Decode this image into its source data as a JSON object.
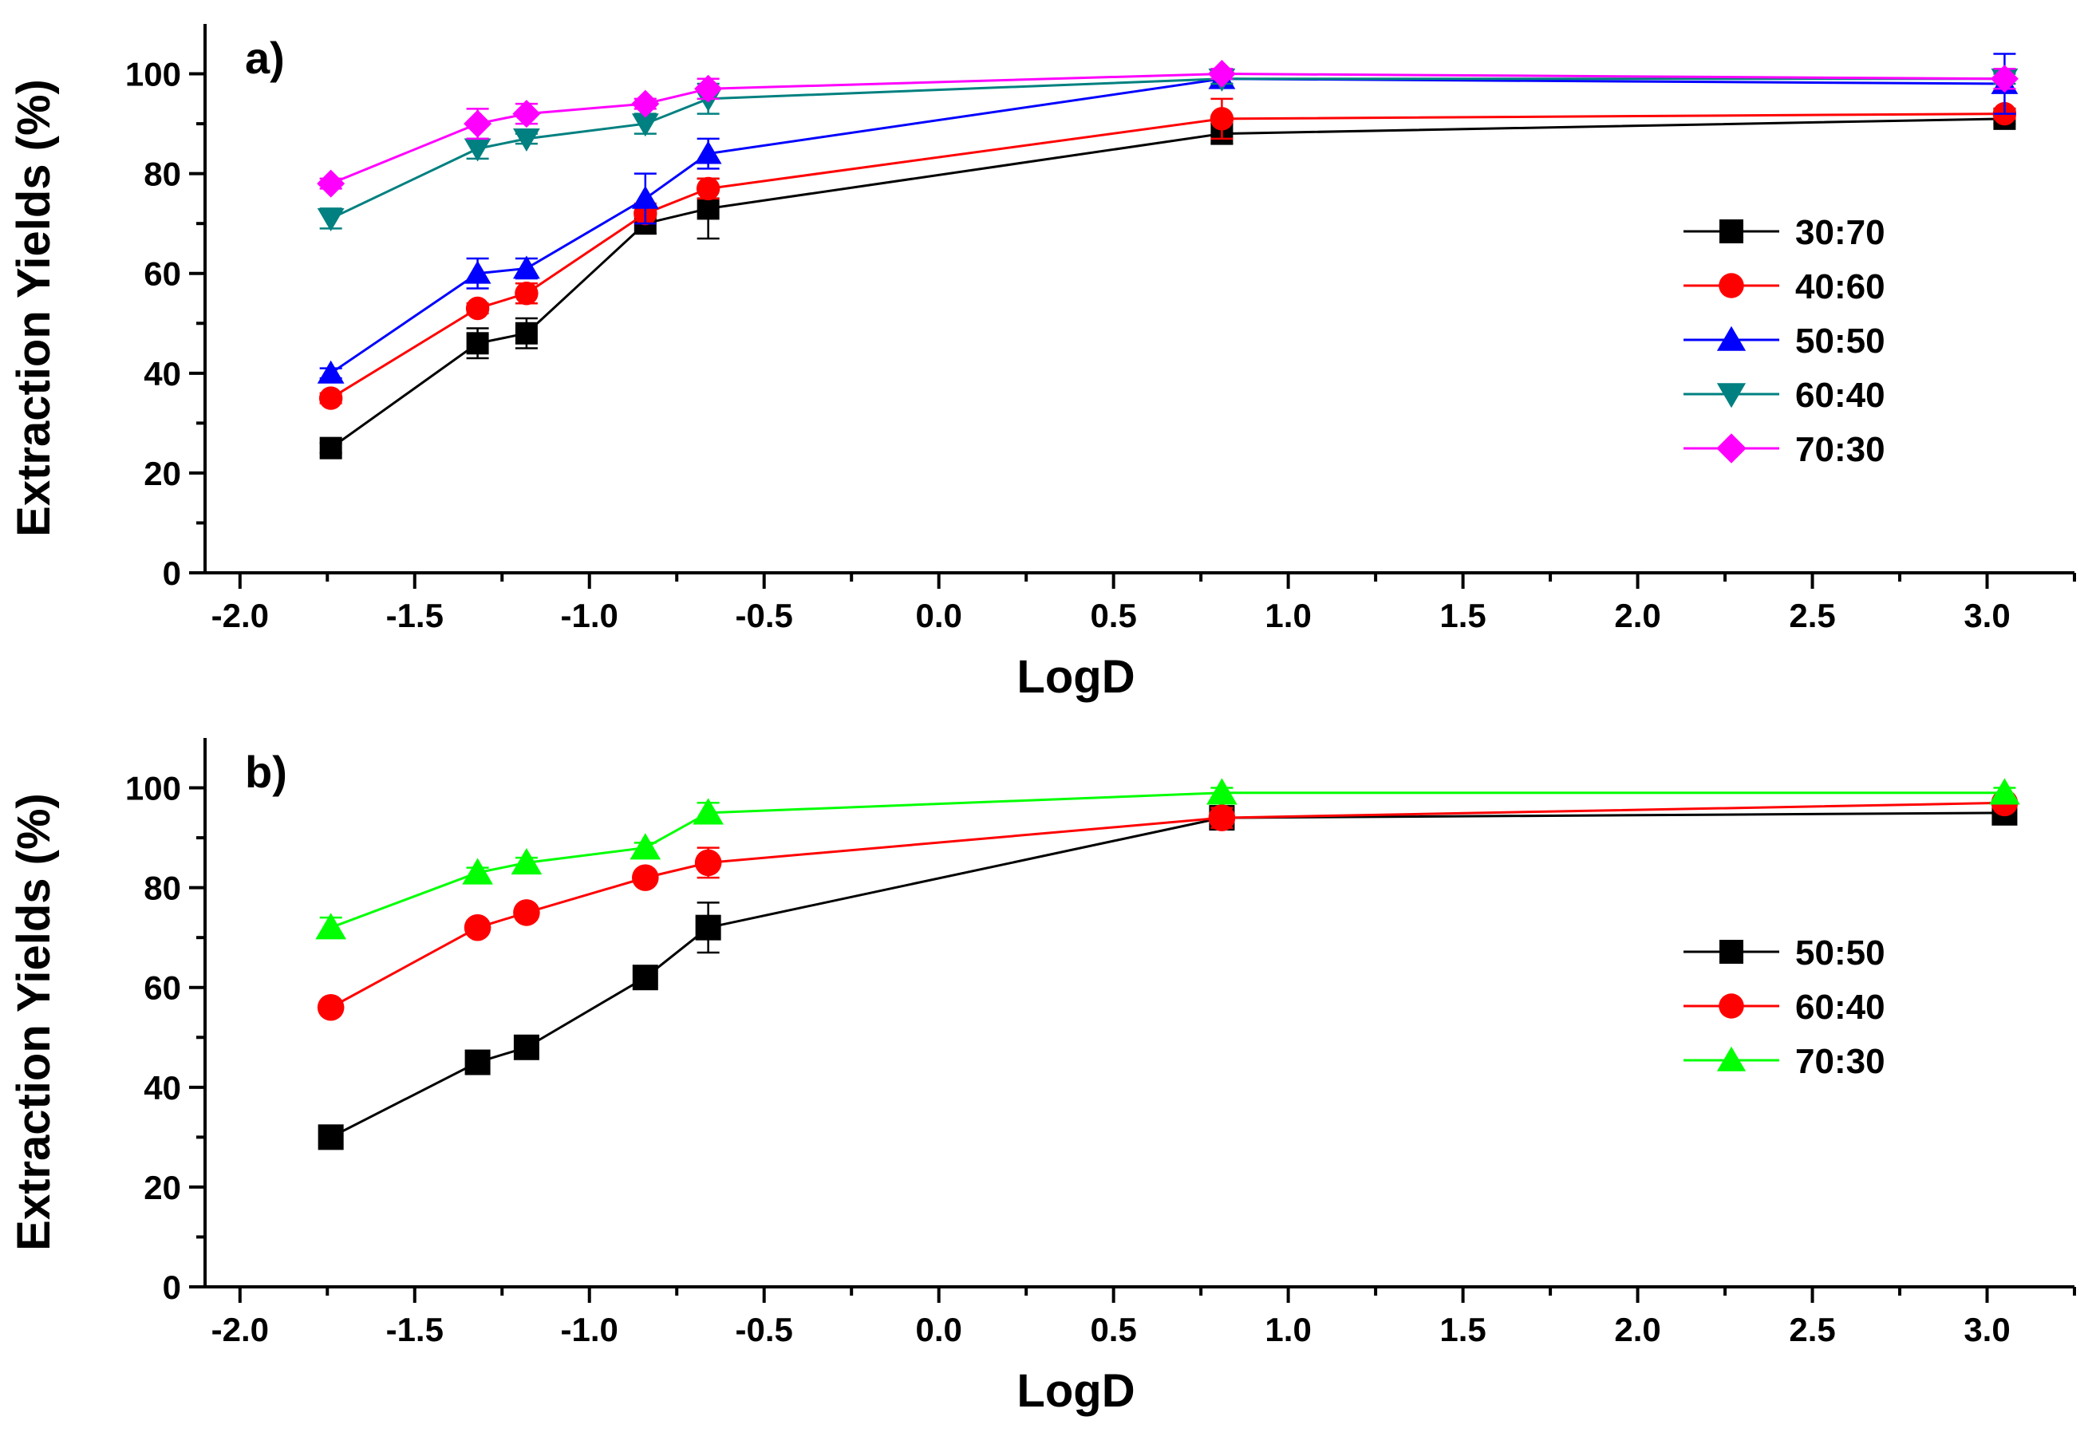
{
  "chart_data": [
    {
      "type": "line",
      "panel_label": "a)",
      "xlabel": "LogD",
      "ylabel": "Extraction Yields (%)",
      "xlim": [
        -2.1,
        3.25
      ],
      "ylim": [
        0,
        110
      ],
      "x_ticks": [
        "-2.0",
        "-1.5",
        "-1.0",
        "-0.5",
        "0.0",
        "0.5",
        "1.0",
        "1.5",
        "2.0",
        "2.5",
        "3.0"
      ],
      "y_ticks": [
        "0",
        "20",
        "40",
        "60",
        "80",
        "100"
      ],
      "legend_position": "right-middle",
      "x": [
        -1.74,
        -1.32,
        -1.18,
        -0.84,
        -0.66,
        0.81,
        3.05
      ],
      "series": [
        {
          "name": "30:70",
          "color": "#000000",
          "marker": "square",
          "values": [
            25,
            46,
            48,
            70,
            73,
            88,
            91
          ],
          "errors": [
            1,
            3,
            3,
            2,
            6,
            2,
            1
          ]
        },
        {
          "name": "40:60",
          "color": "#ff0000",
          "marker": "circle",
          "values": [
            35,
            53,
            56,
            72,
            77,
            91,
            92
          ],
          "errors": [
            1,
            1,
            2,
            2,
            2,
            4,
            1
          ]
        },
        {
          "name": "50:50",
          "color": "#0000ff",
          "marker": "triangle-up",
          "values": [
            40,
            60,
            61,
            75,
            84,
            99,
            98
          ],
          "errors": [
            1,
            3,
            2,
            5,
            3,
            1,
            6
          ]
        },
        {
          "name": "60:40",
          "color": "#008080",
          "marker": "triangle-down",
          "values": [
            71,
            85,
            87,
            90,
            95,
            99,
            99
          ],
          "errors": [
            2,
            2,
            1,
            2,
            3,
            1,
            1
          ]
        },
        {
          "name": "70:30",
          "color": "#ff00ff",
          "marker": "diamond",
          "values": [
            78,
            90,
            92,
            94,
            97,
            100,
            99
          ],
          "errors": [
            1,
            3,
            2,
            1,
            2,
            1,
            2
          ]
        }
      ]
    },
    {
      "type": "line",
      "panel_label": "b)",
      "xlabel": "LogD",
      "ylabel": "Extraction Yields (%)",
      "xlim": [
        -2.1,
        3.25
      ],
      "ylim": [
        0,
        110
      ],
      "x_ticks": [
        "-2.0",
        "-1.5",
        "-1.0",
        "-0.5",
        "0.0",
        "0.5",
        "1.0",
        "1.5",
        "2.0",
        "2.5",
        "3.0"
      ],
      "y_ticks": [
        "0",
        "20",
        "40",
        "60",
        "80",
        "100"
      ],
      "legend_position": "right-middle",
      "x": [
        -1.74,
        -1.32,
        -1.18,
        -0.84,
        -0.66,
        0.81,
        3.05
      ],
      "series": [
        {
          "name": "50:50",
          "color": "#000000",
          "marker": "square",
          "values": [
            30,
            45,
            48,
            62,
            72,
            94,
            95
          ],
          "errors": [
            1,
            1,
            1,
            1,
            5,
            2,
            1
          ]
        },
        {
          "name": "60:40",
          "color": "#ff0000",
          "marker": "circle",
          "values": [
            56,
            72,
            75,
            82,
            85,
            94,
            97
          ],
          "errors": [
            1,
            1,
            1,
            1,
            3,
            2,
            1
          ]
        },
        {
          "name": "70:30",
          "color": "#00ff00",
          "marker": "triangle-up",
          "values": [
            72,
            83,
            85,
            88,
            95,
            99,
            99
          ],
          "errors": [
            2,
            1,
            1,
            1,
            2,
            1,
            1
          ]
        }
      ]
    }
  ]
}
